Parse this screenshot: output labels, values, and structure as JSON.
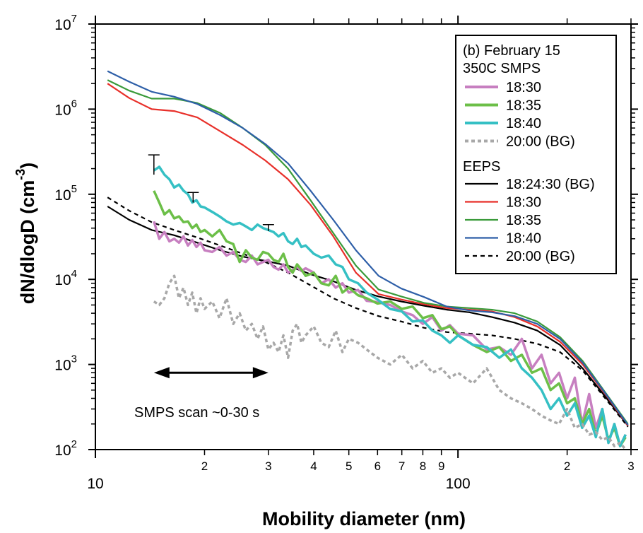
{
  "chart_data": {
    "type": "line",
    "xscale": "log",
    "yscale": "log",
    "xlim": [
      10,
      300
    ],
    "ylim": [
      100,
      10000000
    ],
    "xlabel": "Mobility diameter (nm)",
    "ylabel": "dN/dlogD (cm",
    "ylabel_exp": "-3",
    "ylabel_close": ")",
    "x_major_ticks": [
      {
        "value": 10,
        "label": "10"
      },
      {
        "value": 100,
        "label": "100"
      }
    ],
    "x_minor_ticks": [
      {
        "value": 20,
        "label": "2"
      },
      {
        "value": 30,
        "label": "3"
      },
      {
        "value": 40,
        "label": "4"
      },
      {
        "value": 50,
        "label": "5"
      },
      {
        "value": 60,
        "label": "6"
      },
      {
        "value": 70,
        "label": "7"
      },
      {
        "value": 80,
        "label": "8"
      },
      {
        "value": 90,
        "label": "9"
      },
      {
        "value": 200,
        "label": "2"
      },
      {
        "value": 300,
        "label": "3"
      }
    ],
    "y_ticks": [
      {
        "value": 100,
        "base": "10",
        "exp": "2"
      },
      {
        "value": 1000,
        "base": "10",
        "exp": "3"
      },
      {
        "value": 10000,
        "base": "10",
        "exp": "4"
      },
      {
        "value": 100000,
        "base": "10",
        "exp": "5"
      },
      {
        "value": 1000000,
        "base": "10",
        "exp": "6"
      },
      {
        "value": 10000000,
        "base": "10",
        "exp": "7"
      }
    ],
    "legend": {
      "placement": "top-right",
      "title_lines": [
        "(b) February 15",
        "350C SMPS"
      ],
      "group2_title": "EEPS"
    },
    "annotation": {
      "text": "SMPS scan ~0-30 s",
      "arrow_from_x": 14.5,
      "arrow_to_x": 30,
      "arrow_y": 800
    },
    "series": [
      {
        "name": "18:30",
        "group": "SMPS",
        "color": "#c77fc0",
        "width": 3.5,
        "dash": "",
        "x": [
          14.5,
          15,
          15.5,
          16,
          16.5,
          17,
          17.5,
          18,
          18.5,
          19,
          19.5,
          20,
          21,
          22,
          23,
          24,
          25,
          26,
          27,
          28,
          29,
          30,
          31,
          32,
          33,
          34,
          35,
          36,
          37,
          38,
          40,
          42,
          44,
          46,
          48,
          50,
          53,
          56,
          60,
          65,
          70,
          75,
          80,
          85,
          90,
          95,
          100,
          110,
          120,
          130,
          140,
          150,
          160,
          170,
          180,
          190,
          200,
          210,
          220,
          230,
          240,
          250,
          260,
          270,
          280,
          290
        ],
        "y": [
          48000,
          30000,
          36000,
          28000,
          30000,
          27000,
          32000,
          25000,
          29000,
          24000,
          27000,
          22000,
          21000,
          24000,
          19000,
          21000,
          17000,
          16000,
          19000,
          15000,
          16000,
          17000,
          14000,
          13000,
          15000,
          12000,
          13000,
          14000,
          12500,
          13500,
          12000,
          9000,
          10000,
          8000,
          9000,
          7000,
          7500,
          5600,
          5400,
          5000,
          4200,
          3800,
          3000,
          3600,
          2500,
          2900,
          2300,
          2200,
          1500,
          1600,
          1300,
          2000,
          900,
          1300,
          600,
          800,
          400,
          700,
          200,
          450,
          180,
          300,
          120,
          200,
          110,
          150
        ]
      },
      {
        "name": "18:35",
        "group": "SMPS",
        "color": "#6cbf48",
        "width": 3.5,
        "dash": "",
        "x": [
          14.5,
          15,
          15.5,
          16,
          16.5,
          17,
          17.5,
          18,
          18.5,
          19,
          19.5,
          20,
          21,
          22,
          23,
          24,
          25,
          26,
          27,
          28,
          29,
          30,
          31,
          32,
          33,
          34,
          35,
          36,
          37,
          38,
          40,
          42,
          44,
          46,
          48,
          50,
          53,
          56,
          60,
          65,
          70,
          75,
          80,
          85,
          90,
          95,
          100,
          110,
          120,
          130,
          140,
          150,
          160,
          170,
          180,
          190,
          200,
          210,
          220,
          230,
          240,
          250,
          260,
          270,
          280,
          290
        ],
        "y": [
          110000,
          80000,
          58000,
          65000,
          52000,
          55000,
          47000,
          48000,
          40000,
          44000,
          36000,
          38000,
          32000,
          38000,
          28000,
          26000,
          16000,
          22000,
          18000,
          17000,
          21000,
          20000,
          17000,
          16000,
          20000,
          14000,
          12000,
          15000,
          13000,
          11000,
          12000,
          9000,
          8500,
          11000,
          7000,
          8000,
          6500,
          6000,
          5200,
          5500,
          4500,
          4800,
          3500,
          3800,
          2600,
          2800,
          2200,
          1700,
          1400,
          1600,
          1100,
          1300,
          800,
          900,
          500,
          600,
          350,
          400,
          200,
          300,
          150,
          250,
          130,
          180,
          110,
          140
        ]
      },
      {
        "name": "18:40",
        "group": "SMPS",
        "color": "#35c0c4",
        "width": 3.5,
        "dash": "",
        "x": [
          14.5,
          15,
          15.5,
          16,
          16.5,
          17,
          17.5,
          18,
          18.5,
          19,
          19.5,
          20,
          21,
          22,
          23,
          24,
          25,
          26,
          27,
          28,
          29,
          30,
          31,
          32,
          33,
          34,
          35,
          36,
          37,
          38,
          40,
          42,
          44,
          46,
          48,
          50,
          53,
          56,
          60,
          65,
          70,
          75,
          80,
          85,
          90,
          95,
          100,
          110,
          120,
          130,
          140,
          150,
          160,
          170,
          180,
          190,
          200,
          210,
          220,
          230,
          240,
          250,
          260,
          270,
          280,
          290
        ],
        "y": [
          190000,
          210000,
          170000,
          150000,
          120000,
          130000,
          110000,
          100000,
          80000,
          85000,
          72000,
          70000,
          62000,
          55000,
          48000,
          44000,
          46000,
          42000,
          38000,
          44000,
          40000,
          38000,
          36000,
          32000,
          35000,
          28000,
          26000,
          30000,
          24000,
          25000,
          20000,
          18000,
          19000,
          15000,
          14000,
          10000,
          9000,
          7000,
          5800,
          4500,
          4200,
          3200,
          3300,
          2500,
          2200,
          1800,
          2200,
          1700,
          1600,
          1200,
          1500,
          900,
          700,
          500,
          300,
          400,
          250,
          350,
          180,
          250,
          140,
          300,
          120,
          200,
          110,
          150
        ]
      },
      {
        "name": "20:00 (BG)",
        "group": "SMPS",
        "color": "#a8a8a8",
        "width": 3.5,
        "dash": "5,4",
        "x": [
          14.5,
          15,
          15.5,
          16,
          16.5,
          17,
          17.5,
          18,
          18.5,
          19,
          19.5,
          20,
          21,
          22,
          23,
          24,
          25,
          26,
          27,
          28,
          29,
          30,
          31,
          32,
          33,
          34,
          35,
          36,
          37,
          38,
          40,
          42,
          44,
          46,
          48,
          50,
          53,
          56,
          60,
          65,
          70,
          75,
          80,
          85,
          90,
          95,
          100,
          110,
          120,
          130,
          140,
          150,
          160,
          170,
          180,
          190,
          200,
          210,
          220,
          230,
          240,
          250,
          260,
          270,
          280,
          290
        ],
        "y": [
          5500,
          5000,
          6000,
          9000,
          11000,
          6000,
          8000,
          5000,
          7000,
          4000,
          6000,
          4500,
          5500,
          3500,
          6000,
          3000,
          4000,
          2500,
          3000,
          2000,
          2800,
          1500,
          1800,
          1400,
          2200,
          1200,
          2500,
          3000,
          1800,
          2200,
          2800,
          1800,
          1600,
          2500,
          1400,
          2000,
          1800,
          1500,
          1200,
          1000,
          1300,
          900,
          1100,
          800,
          900,
          700,
          800,
          600,
          900,
          500,
          400,
          350,
          300,
          250,
          220,
          200,
          300,
          180,
          200,
          150,
          160,
          130,
          140,
          110,
          120,
          100
        ]
      },
      {
        "name": "18:24:30 (BG)",
        "group": "EEPS",
        "color": "#000000",
        "width": 2.2,
        "dash": "",
        "x": [
          10.8,
          12.4,
          14.3,
          16.5,
          19.1,
          22.1,
          25.5,
          29.4,
          34,
          39.2,
          45.3,
          52.3,
          60.4,
          69.8,
          80.6,
          93.1,
          107.5,
          124.1,
          143.3,
          165.5,
          191.1,
          220.7,
          254.8,
          294.3
        ],
        "y": [
          72000,
          50000,
          38000,
          33000,
          27000,
          22000,
          18500,
          16500,
          14500,
          11500,
          9500,
          7500,
          6300,
          5500,
          4900,
          4400,
          4100,
          3600,
          3100,
          2500,
          1700,
          900,
          420,
          190
        ]
      },
      {
        "name": "18:30",
        "group": "EEPS",
        "color": "#e8302a",
        "width": 2.2,
        "dash": "",
        "x": [
          10.8,
          12.4,
          14.3,
          16.5,
          19.1,
          22.1,
          25.5,
          29.4,
          34,
          39.2,
          45.3,
          52.3,
          60.4,
          69.8,
          80.6,
          93.1,
          107.5,
          124.1,
          143.3,
          165.5,
          191.1,
          220.7,
          254.8,
          294.3
        ],
        "y": [
          2000000,
          1350000,
          1000000,
          950000,
          800000,
          550000,
          380000,
          250000,
          150000,
          75000,
          32000,
          12000,
          6700,
          5800,
          5100,
          4600,
          4400,
          4200,
          3600,
          2800,
          1850,
          1000,
          450,
          190
        ]
      },
      {
        "name": "18:35",
        "group": "EEPS",
        "color": "#3a9a3a",
        "width": 2.2,
        "dash": "",
        "x": [
          10.8,
          12.4,
          14.3,
          16.5,
          19.1,
          22.1,
          25.5,
          29.4,
          34,
          39.2,
          45.3,
          52.3,
          60.4,
          69.8,
          80.6,
          93.1,
          107.5,
          124.1,
          143.3,
          165.5,
          191.1,
          220.7,
          254.8,
          294.3
        ],
        "y": [
          2200000,
          1650000,
          1330000,
          1330000,
          1180000,
          900000,
          600000,
          380000,
          200000,
          85000,
          35000,
          14500,
          7600,
          6300,
          5300,
          4800,
          4600,
          4400,
          4000,
          3200,
          2100,
          1100,
          470,
          200
        ]
      },
      {
        "name": "18:40",
        "group": "EEPS",
        "color": "#2e5fa8",
        "width": 2.2,
        "dash": "",
        "x": [
          10.8,
          12.4,
          14.3,
          16.5,
          19.1,
          22.1,
          25.5,
          29.4,
          34,
          39.2,
          45.3,
          52.3,
          60.4,
          69.8,
          80.6,
          93.1,
          107.5,
          124.1,
          143.3,
          165.5,
          191.1,
          220.7,
          254.8,
          294.3
        ],
        "y": [
          2800000,
          2100000,
          1600000,
          1400000,
          1150000,
          850000,
          600000,
          390000,
          230000,
          110000,
          50000,
          22000,
          11000,
          7800,
          6200,
          4800,
          4300,
          4100,
          3700,
          3000,
          2000,
          1050,
          460,
          195
        ]
      },
      {
        "name": "20:00 (BG)",
        "group": "EEPS",
        "color": "#000000",
        "width": 2.2,
        "dash": "6,5",
        "x": [
          10.8,
          12.4,
          14.3,
          16.5,
          19.1,
          22.1,
          25.5,
          29.4,
          34,
          39.2,
          45.3,
          52.3,
          60.4,
          69.8,
          80.6,
          93.1,
          107.5,
          124.1,
          143.3,
          165.5,
          191.1,
          220.7,
          254.8,
          294.3
        ],
        "y": [
          92000,
          64000,
          47000,
          38000,
          31000,
          25000,
          20000,
          16000,
          12000,
          8500,
          6000,
          4600,
          3700,
          3200,
          2700,
          2400,
          2300,
          2200,
          2000,
          1750,
          1400,
          850,
          400,
          185
        ]
      }
    ],
    "error_bars": [
      {
        "x": 14.5,
        "y_lo": 170000,
        "y_hi": 290000
      },
      {
        "x": 18.6,
        "y_lo": 80000,
        "y_hi": 105000
      },
      {
        "x": 30,
        "y_lo": 37000,
        "y_hi": 44000
      }
    ]
  }
}
